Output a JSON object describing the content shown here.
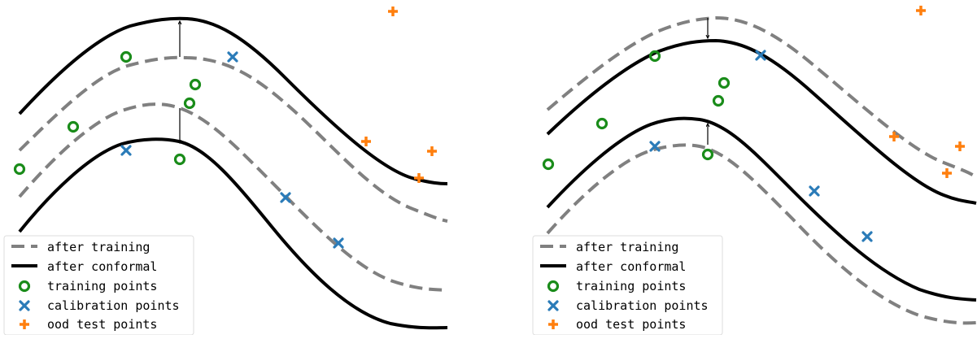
{
  "colors": {
    "training": "#1a8c1a",
    "calibration": "#2a7bb8",
    "ood": "#ff7f0e",
    "after_training": "#808080",
    "after_conformal": "#000000",
    "legend_border": "#dddddd"
  },
  "legend": {
    "after_training": "after training",
    "after_conformal": "after conformal",
    "training_points": "training points",
    "calibration_points": "calibration points",
    "ood_test_points": "ood test points"
  },
  "panels": [
    {
      "name": "left",
      "training_points": [
        [
          1.5,
          2.2
        ],
        [
          2.8,
          4.3
        ],
        [
          4.8,
          5.5
        ],
        [
          7.5,
          6.5
        ],
        [
          9.1,
          6.0
        ],
        [
          8.9,
          3.6
        ]
      ],
      "calibration_points": [
        [
          5.5,
          2.8
        ],
        [
          10.9,
          8.0
        ],
        [
          13.3,
          1.5
        ],
        [
          15.8,
          -0.8
        ]
      ],
      "ood_points": [
        [
          18.3,
          11.5
        ],
        [
          17.2,
          3.5
        ],
        [
          20.3,
          2.5
        ],
        [
          19.6,
          1.5
        ]
      ],
      "arrows": [
        {
          "x": 8.5,
          "from": 7.7,
          "to": 9.4
        },
        {
          "x": 8.5,
          "from": 3.5,
          "to": 5.2
        }
      ]
    },
    {
      "name": "right",
      "training_points": [
        [
          1.5,
          2.2
        ],
        [
          3.9,
          3.7
        ],
        [
          6.5,
          5.2
        ],
        [
          9.0,
          6.1
        ],
        [
          9.3,
          5.0
        ],
        [
          9.0,
          2.5
        ]
      ],
      "calibration_points": [
        [
          6.5,
          2.7
        ],
        [
          11.5,
          7.5
        ],
        [
          13.8,
          0.8
        ],
        [
          16.4,
          -0.9
        ]
      ],
      "ood_points": [
        [
          18.9,
          11.5
        ],
        [
          17.0,
          3.0
        ],
        [
          19.9,
          2.2
        ],
        [
          19.3,
          1.9
        ]
      ],
      "arrows": [
        {
          "x": 8.5,
          "from": 10.5,
          "to": 9.4
        },
        {
          "x": 8.5,
          "from": 3.2,
          "to": 4.3
        }
      ]
    }
  ]
}
